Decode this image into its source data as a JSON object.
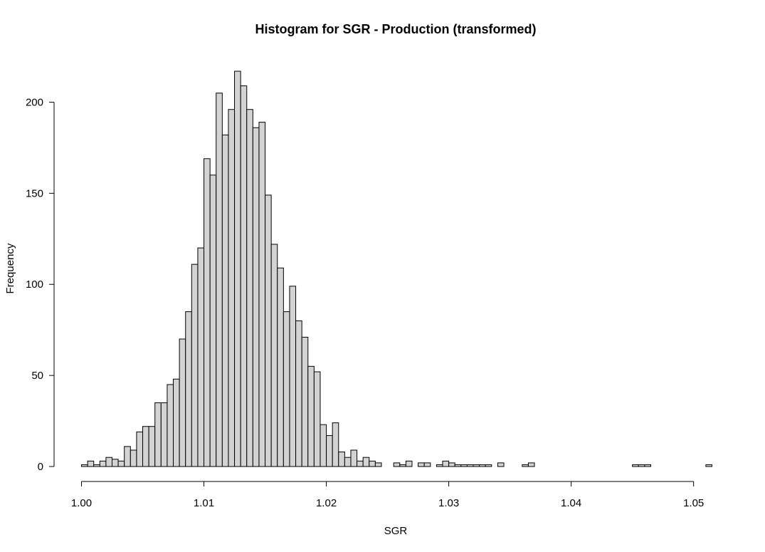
{
  "chart_data": {
    "type": "bar",
    "title": "Histogram for SGR - Production (transformed)",
    "xlabel": "SGR",
    "ylabel": "Frequency",
    "xlim": [
      1.0,
      1.0515
    ],
    "ylim": [
      0,
      217
    ],
    "x_ticks": [
      "1.00",
      "1.01",
      "1.02",
      "1.03",
      "1.04",
      "1.05"
    ],
    "x_tick_values": [
      1.0,
      1.01,
      1.02,
      1.03,
      1.04,
      1.05
    ],
    "y_ticks": [
      "0",
      "50",
      "100",
      "150",
      "200"
    ],
    "y_tick_values": [
      0,
      50,
      100,
      150,
      200
    ],
    "bin_start": 1.0,
    "bin_width": 0.0005,
    "grid": false,
    "values": [
      1,
      3,
      1,
      3,
      5,
      4,
      3,
      11,
      9,
      19,
      22,
      22,
      35,
      35,
      45,
      48,
      70,
      85,
      111,
      120,
      169,
      160,
      205,
      182,
      196,
      217,
      209,
      196,
      186,
      189,
      149,
      122,
      109,
      85,
      99,
      80,
      71,
      55,
      52,
      23,
      17,
      24,
      8,
      5,
      9,
      3,
      5,
      3,
      2,
      0,
      0,
      2,
      1,
      3,
      0,
      2,
      2,
      0,
      1,
      3,
      2,
      1,
      1,
      1,
      1,
      1,
      1,
      0,
      2,
      0,
      0,
      0,
      1,
      2,
      0,
      0,
      0,
      0,
      0,
      0,
      0,
      0,
      0,
      0,
      0,
      0,
      0,
      0,
      0,
      0,
      1,
      1,
      1,
      0,
      0,
      0,
      0,
      0,
      0,
      0,
      0,
      0,
      1
    ]
  }
}
